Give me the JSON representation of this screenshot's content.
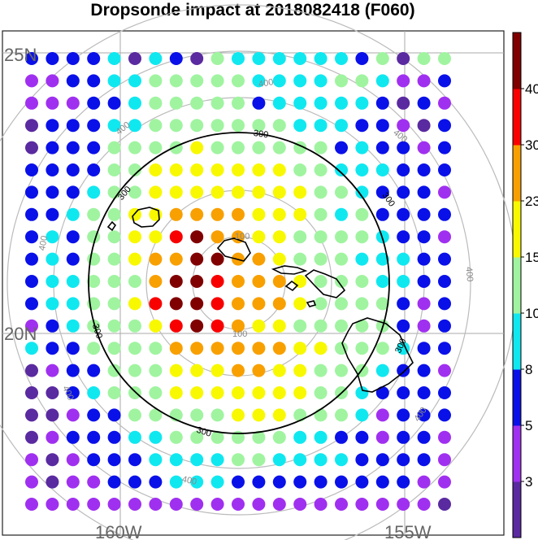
{
  "title": "Dropsonde impact at 2018082418 (F060)",
  "axes": {
    "lat_labels": [
      "25N",
      "20N"
    ],
    "lon_labels": [
      "160W",
      "155W"
    ]
  },
  "rings": {
    "major_label": "300",
    "minor_labels": [
      "100",
      "400"
    ]
  },
  "colorbar": {
    "levels": [
      "3",
      "5",
      "8",
      "10",
      "15",
      "23",
      "30",
      "40"
    ],
    "colors": [
      "#5a2aa0",
      "#a030f0",
      "#0a10e8",
      "#10e8f0",
      "#a0f4a0",
      "#f8f800",
      "#f8a000",
      "#f80000",
      "#800000"
    ]
  },
  "chart_data": {
    "type": "heatmap",
    "title": "Dropsonde impact at 2018082418 (F060)",
    "grid_rows": 21,
    "grid_cols": 21,
    "color_classes": "0=<3,1=3-5,2=5-8,3=8-10,4=10-15,5=15-23,6=23-30,7=30-40,8=>40",
    "rows": [
      "222230320433333324044",
      "112233444443333443112",
      "111223444442333332021",
      "022233444444433322102",
      "022244445444444232212",
      "222244555555544333222",
      "222344555555554432221",
      "223445566665554342222",
      "232445578665544443221",
      "232445668866544433322",
      "233444688766654443322",
      "233445788766654444212",
      "123444578765544444212",
      "322444466666655444322",
      "012244455566554443221",
      "002344455555554432222",
      "001224444455544431222",
      "012223344444433221221",
      "101222333344333322221",
      "101122233322222222211",
      "111111111111111111110"
    ]
  }
}
